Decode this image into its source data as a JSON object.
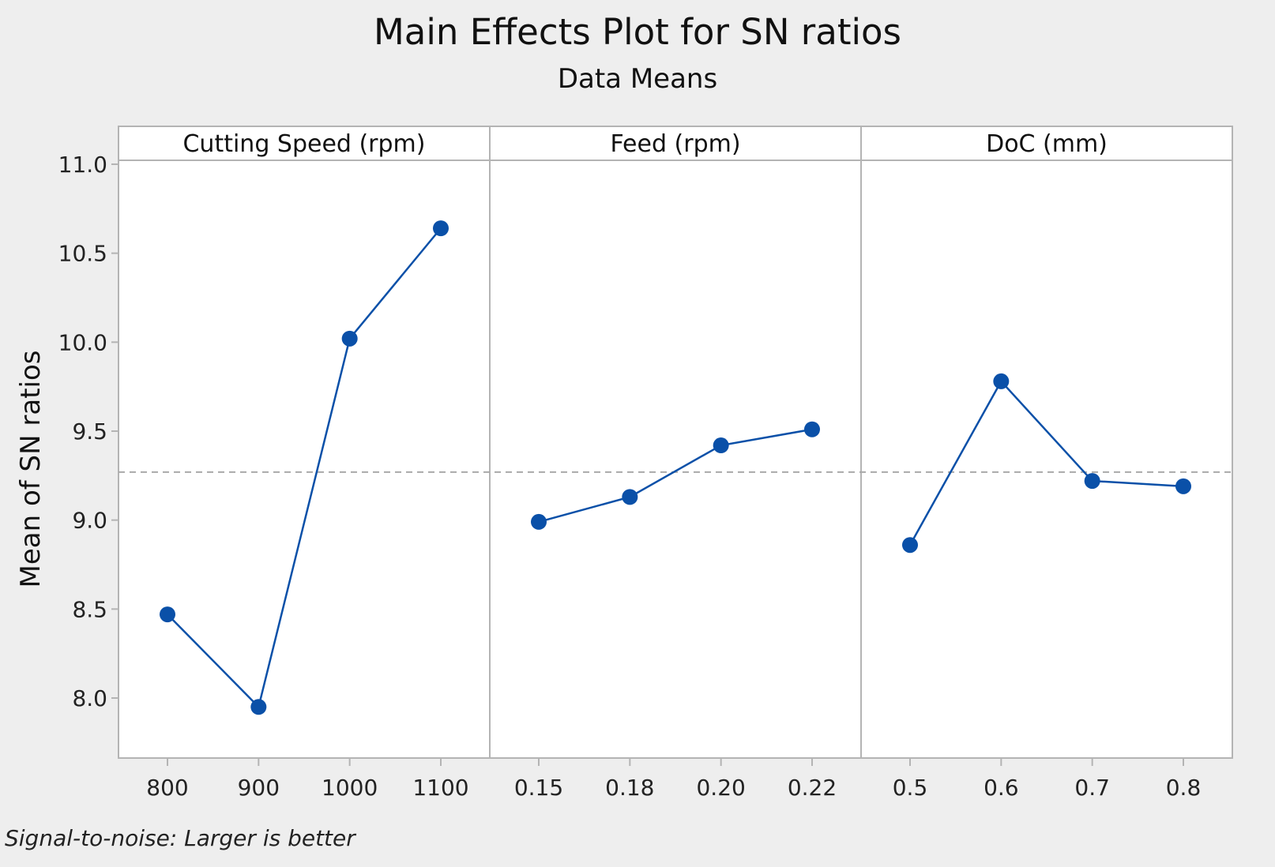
{
  "chart_data": {
    "type": "line",
    "title": "Main Effects Plot for SN ratios",
    "subtitle": "Data Means",
    "ylabel": "Mean of SN ratios",
    "xlabel": "",
    "ylim": [
      7.85,
      11.05
    ],
    "yticks": [
      8.0,
      8.5,
      9.0,
      9.5,
      10.0,
      10.5,
      11.0
    ],
    "ytick_labels": [
      "8.0",
      "8.5",
      "9.0",
      "9.5",
      "10.0",
      "10.5",
      "11.0"
    ],
    "grid": false,
    "reference_line": {
      "value": 9.27,
      "style": "dashed",
      "color": "#aaaaaa"
    },
    "series_color": "#0a50a8",
    "panels": [
      {
        "name": "Cutting Speed (rpm)",
        "categories": [
          "800",
          "900",
          "1000",
          "1100"
        ],
        "values": [
          8.47,
          7.95,
          10.02,
          10.64
        ]
      },
      {
        "name": "Feed (rpm)",
        "categories": [
          "0.15",
          "0.18",
          "0.20",
          "0.22"
        ],
        "values": [
          8.99,
          9.13,
          9.42,
          9.51
        ]
      },
      {
        "name": "DoC (mm)",
        "categories": [
          "0.5",
          "0.6",
          "0.7",
          "0.8"
        ],
        "values": [
          8.86,
          9.78,
          9.22,
          9.19
        ]
      }
    ],
    "footnote": "Signal-to-noise: Larger is better"
  }
}
